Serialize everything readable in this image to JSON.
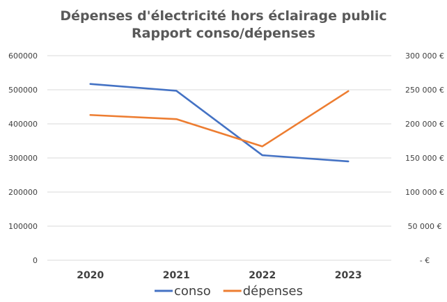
{
  "chart_data": {
    "type": "line",
    "title": "Dépenses d'électricité hors éclairage public",
    "subtitle": "Rapport conso/dépenses",
    "categories": [
      "2020",
      "2021",
      "2022",
      "2023"
    ],
    "ylim_left": [
      0,
      600000
    ],
    "yticks_left": [
      "0",
      "100000",
      "200000",
      "300000",
      "400000",
      "500000",
      "600000"
    ],
    "ylim_right": [
      0,
      300000
    ],
    "yticks_right": [
      "-  €",
      "50 000 €",
      "100 000 €",
      "150 000 €",
      "200 000 €",
      "250 000 €",
      "300 000 €"
    ],
    "grid": true,
    "legend_position": "bottom",
    "series": [
      {
        "name": "conso",
        "axis": "left",
        "color": "#4472C4",
        "values": [
          517000,
          497000,
          308000,
          290000
        ]
      },
      {
        "name": "dépenses",
        "axis": "right",
        "color": "#ED7D31",
        "values": [
          213000,
          207000,
          167000,
          248000
        ]
      }
    ]
  }
}
